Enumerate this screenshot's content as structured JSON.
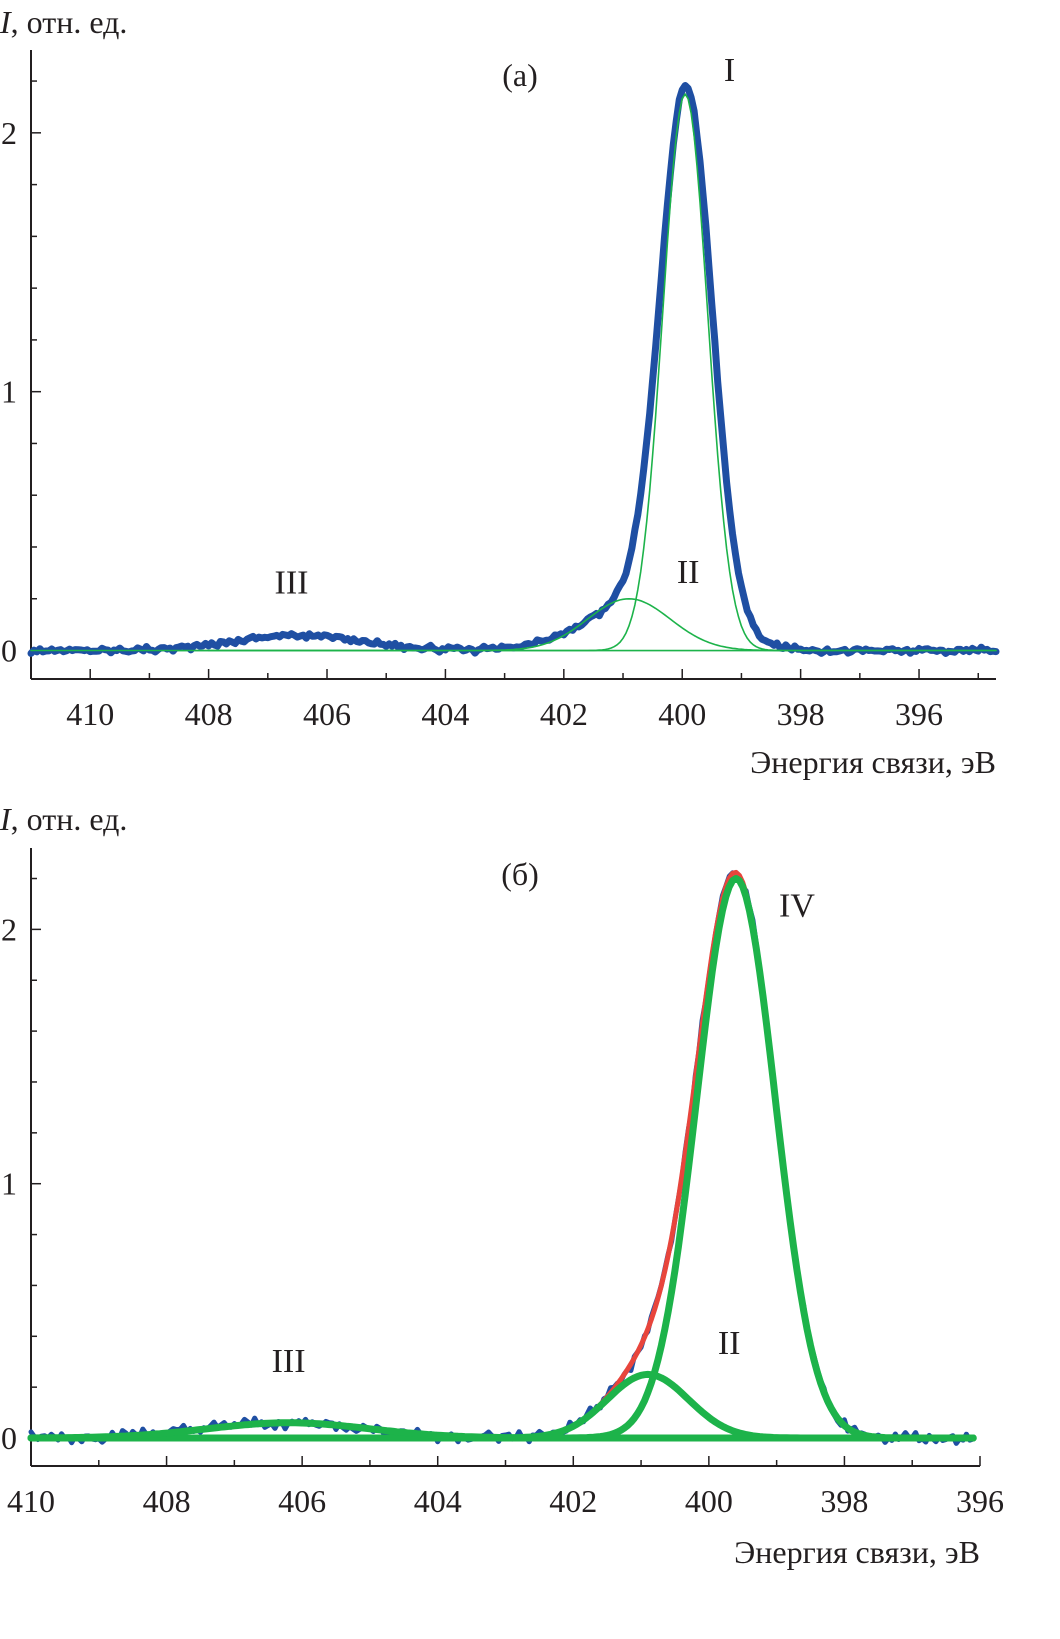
{
  "colors": {
    "measured": "#1f4fa3",
    "fit_sum": "#e8453c",
    "component": "#1db34a",
    "axis": "#231f20"
  },
  "chart_data": [
    {
      "type": "line",
      "panel_label": "(а)",
      "ylabel_italic": "I",
      "ylabel_rest": ", отн. ед.",
      "xlabel": "Энергия связи, эВ",
      "xlim": [
        411,
        394.7
      ],
      "ylim": [
        -0.11,
        2.32
      ],
      "xticks": [
        410,
        408,
        406,
        404,
        402,
        400,
        398,
        396
      ],
      "yticks": [
        0,
        1,
        2
      ],
      "y_minor_step": 0.2,
      "x_minor_step": 1,
      "peak_labels": [
        {
          "text": "I",
          "x": 399.2,
          "y": 2.2
        },
        {
          "text": "II",
          "x": 399.9,
          "y": 0.26
        },
        {
          "text": "III",
          "x": 406.6,
          "y": 0.22
        }
      ],
      "baseline_range": [
        411,
        394.7
      ],
      "series": [
        {
          "name": "measured",
          "role": "measured",
          "style": "thick",
          "x_start": 411,
          "x_end": 394.7,
          "noise": 0.006,
          "components": [
            {
              "center": 399.93,
              "amp": 2.03,
              "sigma": 0.43
            },
            {
              "center": 400.6,
              "amp": 0.2,
              "sigma": 0.95
            },
            {
              "center": 406.5,
              "amp": 0.06,
              "sigma": 1.1
            }
          ]
        },
        {
          "name": "I",
          "role": "component",
          "style": "thin",
          "x_start": 411,
          "x_end": 394.7,
          "components": [
            {
              "center": 399.95,
              "amp": 2.15,
              "sigma": 0.38
            }
          ]
        },
        {
          "name": "II",
          "role": "component",
          "style": "thin",
          "x_start": 408,
          "x_end": 394.7,
          "components": [
            {
              "center": 400.9,
              "amp": 0.2,
              "sigma": 0.7
            }
          ]
        }
      ]
    },
    {
      "type": "line",
      "panel_label": "(б)",
      "ylabel_italic": "I",
      "ylabel_rest": ", отн. ед.",
      "xlabel": "Энергия связи, эВ",
      "xlim": [
        410,
        396
      ],
      "ylim": [
        -0.11,
        2.32
      ],
      "xticks": [
        410,
        408,
        406,
        404,
        402,
        400,
        398,
        396
      ],
      "yticks": [
        0,
        1,
        2
      ],
      "y_minor_step": 0.2,
      "x_minor_step": 1,
      "peak_labels": [
        {
          "text": "IV",
          "x": 398.7,
          "y": 2.05
        },
        {
          "text": "II",
          "x": 399.7,
          "y": 0.33
        },
        {
          "text": "III",
          "x": 406.2,
          "y": 0.26
        }
      ],
      "baseline_range": [
        410,
        396.1
      ],
      "series": [
        {
          "name": "measured",
          "role": "measured",
          "style": "medium",
          "x_start": 410,
          "x_end": 396.1,
          "noise": 0.012,
          "components": [
            {
              "center": 399.6,
              "amp": 2.2,
              "sigma": 0.58
            },
            {
              "center": 400.9,
              "amp": 0.25,
              "sigma": 0.6
            },
            {
              "center": 406.2,
              "amp": 0.06,
              "sigma": 1.2
            }
          ]
        },
        {
          "name": "fit",
          "role": "fit_sum",
          "style": "medium",
          "x_start": 410,
          "x_end": 396.1,
          "components": [
            {
              "center": 399.6,
              "amp": 2.2,
              "sigma": 0.58
            },
            {
              "center": 400.9,
              "amp": 0.25,
              "sigma": 0.6
            },
            {
              "center": 406.2,
              "amp": 0.06,
              "sigma": 1.2
            }
          ]
        },
        {
          "name": "IV",
          "role": "component",
          "style": "thick",
          "x_start": 410,
          "x_end": 396.1,
          "components": [
            {
              "center": 399.6,
              "amp": 2.2,
              "sigma": 0.58
            }
          ]
        },
        {
          "name": "II",
          "role": "component",
          "style": "thick",
          "x_start": 410,
          "x_end": 396.1,
          "components": [
            {
              "center": 400.9,
              "amp": 0.25,
              "sigma": 0.6
            }
          ]
        },
        {
          "name": "III",
          "role": "component",
          "style": "thick",
          "x_start": 410,
          "x_end": 396.1,
          "components": [
            {
              "center": 406.2,
              "amp": 0.06,
              "sigma": 1.2
            }
          ]
        }
      ]
    }
  ]
}
